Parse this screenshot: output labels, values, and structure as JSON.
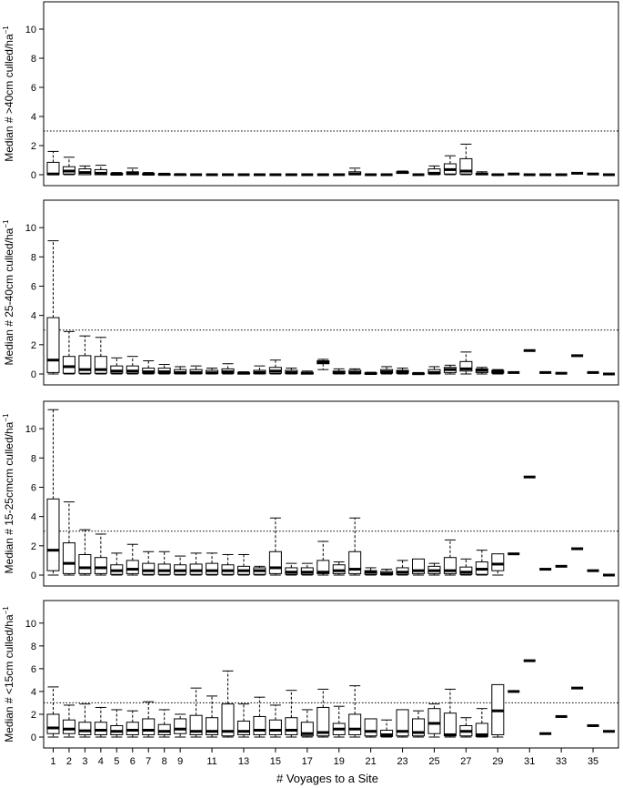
{
  "chart_data": {
    "type": "box",
    "xlabel": "# Voyages to a Site",
    "x_tick_labels": [
      "1",
      "2",
      "3",
      "4",
      "5",
      "6",
      "7",
      "8",
      "9",
      "11",
      "13",
      "15",
      "17",
      "19",
      "21",
      "23",
      "25",
      "27",
      "29",
      "31",
      "33",
      "35"
    ],
    "x_tick_positions": [
      1,
      2,
      3,
      4,
      5,
      6,
      7,
      8,
      9,
      11,
      13,
      15,
      17,
      19,
      21,
      23,
      25,
      27,
      29,
      31,
      33,
      35
    ],
    "xlim": [
      0.4,
      36.6
    ],
    "reference_line": 3,
    "panels": [
      {
        "ylabel_main": "Median # >40cm culled/ha",
        "ylabel_sup": "−1",
        "ylim": [
          0,
          11.5
        ],
        "yticks": [
          "0",
          "2",
          "4",
          "6",
          "8",
          "10"
        ],
        "boxes": [
          [
            1,
            0,
            0,
            0.05,
            0.85,
            1.6
          ],
          [
            2,
            0,
            0.05,
            0.25,
            0.55,
            1.2
          ],
          [
            3,
            0,
            0,
            0.15,
            0.4,
            0.6
          ],
          [
            4,
            0,
            0,
            0.1,
            0.35,
            0.65
          ],
          [
            5,
            0,
            0,
            0.03,
            0.1,
            0.15
          ],
          [
            6,
            0,
            0,
            0.1,
            0.2,
            0.45
          ],
          [
            7,
            0,
            0,
            0.03,
            0.08,
            0.15
          ],
          [
            8,
            0,
            0,
            0.02,
            0.05,
            0.1
          ],
          [
            9,
            0,
            0,
            0.01,
            0.02,
            0.05
          ],
          [
            10,
            0,
            0,
            0,
            0,
            0
          ],
          [
            11,
            0,
            0,
            0,
            0,
            0
          ],
          [
            12,
            0,
            0,
            0,
            0,
            0
          ],
          [
            13,
            0,
            0,
            0,
            0,
            0
          ],
          [
            14,
            0,
            0,
            0,
            0,
            0
          ],
          [
            15,
            0,
            0,
            0,
            0,
            0
          ],
          [
            16,
            0,
            0,
            0,
            0,
            0
          ],
          [
            17,
            0,
            0,
            0,
            0,
            0
          ],
          [
            18,
            0,
            0,
            0,
            0,
            0
          ],
          [
            19,
            0,
            0,
            0,
            0,
            0
          ],
          [
            20,
            0,
            0,
            0.05,
            0.2,
            0.45
          ],
          [
            21,
            0,
            0,
            0,
            0,
            0
          ],
          [
            22,
            0,
            0,
            0,
            0,
            0
          ],
          [
            23,
            0.1,
            0.1,
            0.15,
            0.2,
            0.25
          ],
          [
            24,
            0,
            0,
            0,
            0,
            0
          ],
          [
            25,
            0,
            0.02,
            0.1,
            0.4,
            0.6
          ],
          [
            26,
            0,
            0.05,
            0.35,
            0.75,
            1.3
          ],
          [
            27,
            0,
            0.05,
            0.25,
            1.1,
            2.1
          ],
          [
            28,
            0,
            0,
            0.05,
            0.1,
            0.2
          ],
          [
            29,
            0,
            0,
            0,
            0.03,
            0.05
          ],
          [
            30,
            0.05,
            0.05,
            0.05,
            0.05,
            0.05
          ],
          [
            31,
            0,
            0,
            0,
            0,
            0
          ],
          [
            32,
            0,
            0,
            0,
            0,
            0
          ],
          [
            33,
            0,
            0,
            0,
            0,
            0
          ],
          [
            34,
            0.1,
            0.1,
            0.1,
            0.1,
            0.1
          ],
          [
            35,
            0.05,
            0.05,
            0.05,
            0.05,
            0.05
          ],
          [
            36,
            0,
            0,
            0,
            0,
            0
          ]
        ]
      },
      {
        "ylabel_main": "Median # 25-40cm culled/ha",
        "ylabel_sup": "−1",
        "ylim": [
          0,
          11.5
        ],
        "yticks": [
          "0",
          "2",
          "4",
          "6",
          "8",
          "10"
        ],
        "boxes": [
          [
            1,
            0,
            0.1,
            0.95,
            3.85,
            9.1
          ],
          [
            2,
            0,
            0.05,
            0.5,
            1.2,
            2.9
          ],
          [
            3,
            0,
            0.05,
            0.3,
            1.25,
            2.6
          ],
          [
            4,
            0,
            0.05,
            0.3,
            1.2,
            2.5
          ],
          [
            5,
            0,
            0.05,
            0.2,
            0.55,
            1.1
          ],
          [
            6,
            0,
            0.05,
            0.2,
            0.55,
            1.2
          ],
          [
            7,
            0,
            0.05,
            0.15,
            0.4,
            0.9
          ],
          [
            8,
            0,
            0.05,
            0.15,
            0.4,
            0.65
          ],
          [
            9,
            0,
            0.02,
            0.1,
            0.3,
            0.5
          ],
          [
            10,
            0,
            0.02,
            0.1,
            0.3,
            0.55
          ],
          [
            11,
            0,
            0.02,
            0.08,
            0.25,
            0.4
          ],
          [
            12,
            0,
            0.05,
            0.15,
            0.35,
            0.7
          ],
          [
            13,
            0,
            0,
            0.05,
            0.1,
            0.15
          ],
          [
            14,
            0,
            0.02,
            0.1,
            0.25,
            0.55
          ],
          [
            15,
            0,
            0.05,
            0.2,
            0.45,
            0.95
          ],
          [
            16,
            0,
            0.02,
            0.1,
            0.25,
            0.4
          ],
          [
            17,
            0,
            0,
            0.05,
            0.12,
            0.2
          ],
          [
            18,
            0.3,
            0.7,
            0.8,
            0.9,
            1.0
          ],
          [
            19,
            0,
            0.02,
            0.1,
            0.2,
            0.35
          ],
          [
            20,
            0,
            0.02,
            0.1,
            0.25,
            0.35
          ],
          [
            21,
            0,
            0,
            0.03,
            0.08,
            0.12
          ],
          [
            22,
            0,
            0.05,
            0.15,
            0.3,
            0.5
          ],
          [
            23,
            0,
            0.05,
            0.15,
            0.25,
            0.4
          ],
          [
            24,
            0,
            0,
            0.02,
            0.05,
            0.1
          ],
          [
            25,
            0,
            0.02,
            0.1,
            0.3,
            0.5
          ],
          [
            26,
            0,
            0.1,
            0.3,
            0.45,
            0.6
          ],
          [
            27,
            0,
            0.2,
            0.35,
            0.85,
            1.5
          ],
          [
            28,
            0,
            0.1,
            0.25,
            0.35,
            0.45
          ],
          [
            29,
            0,
            0.05,
            0.15,
            0.25,
            0.3
          ],
          [
            30,
            0.1,
            0.1,
            0.1,
            0.1,
            0.1
          ],
          [
            31,
            1.6,
            1.6,
            1.6,
            1.6,
            1.6
          ],
          [
            32,
            0.1,
            0.1,
            0.1,
            0.1,
            0.1
          ],
          [
            33,
            0.05,
            0.05,
            0.05,
            0.05,
            0.05
          ],
          [
            34,
            1.25,
            1.25,
            1.25,
            1.25,
            1.25
          ],
          [
            35,
            0.1,
            0.1,
            0.1,
            0.1,
            0.1
          ],
          [
            36,
            0,
            0,
            0,
            0,
            0
          ]
        ]
      },
      {
        "ylabel_main": "Median # 15-25cmcm culled/ha",
        "ylabel_sup": "−1",
        "ylim": [
          0,
          11.5
        ],
        "yticks": [
          "0",
          "2",
          "4",
          "6",
          "8",
          "10"
        ],
        "boxes": [
          [
            1,
            0,
            0.3,
            1.7,
            5.2,
            11.3
          ],
          [
            2,
            0,
            0.1,
            0.8,
            2.2,
            5.0
          ],
          [
            3,
            0,
            0.1,
            0.5,
            1.4,
            3.1
          ],
          [
            4,
            0,
            0.1,
            0.5,
            1.2,
            2.8
          ],
          [
            5,
            0,
            0.05,
            0.3,
            0.7,
            1.5
          ],
          [
            6,
            0,
            0.1,
            0.4,
            1.0,
            2.1
          ],
          [
            7,
            0,
            0.05,
            0.3,
            0.8,
            1.6
          ],
          [
            8,
            0,
            0.05,
            0.3,
            0.75,
            1.6
          ],
          [
            9,
            0,
            0.05,
            0.3,
            0.7,
            1.3
          ],
          [
            10,
            0,
            0.05,
            0.3,
            0.75,
            1.5
          ],
          [
            11,
            0,
            0.05,
            0.3,
            0.8,
            1.5
          ],
          [
            12,
            0,
            0.05,
            0.3,
            0.7,
            1.4
          ],
          [
            13,
            0,
            0.05,
            0.3,
            0.6,
            1.4
          ],
          [
            14,
            0,
            0.05,
            0.3,
            0.5,
            0.6
          ],
          [
            15,
            0,
            0.1,
            0.5,
            1.6,
            3.9
          ],
          [
            16,
            0,
            0.05,
            0.2,
            0.5,
            0.8
          ],
          [
            17,
            0,
            0.05,
            0.2,
            0.5,
            0.8
          ],
          [
            18,
            0,
            0.1,
            0.2,
            1.0,
            2.3
          ],
          [
            19,
            0,
            0.1,
            0.3,
            0.7,
            0.9
          ],
          [
            20,
            0,
            0.1,
            0.4,
            1.6,
            3.9
          ],
          [
            21,
            0,
            0.05,
            0.2,
            0.3,
            0.5
          ],
          [
            22,
            0,
            0.02,
            0.1,
            0.25,
            0.4
          ],
          [
            23,
            0,
            0.05,
            0.2,
            0.5,
            1.0
          ],
          [
            24,
            0,
            0.1,
            0.3,
            1.1,
            1.1
          ],
          [
            25,
            0,
            0.1,
            0.3,
            0.6,
            0.8
          ],
          [
            26,
            0,
            0.1,
            0.3,
            1.2,
            2.4
          ],
          [
            27,
            0,
            0.05,
            0.2,
            0.55,
            1.1
          ],
          [
            28,
            0,
            0.05,
            0.4,
            0.9,
            1.7
          ],
          [
            29,
            0,
            0.3,
            0.75,
            1.45,
            1.45
          ],
          [
            30,
            1.45,
            1.45,
            1.45,
            1.45,
            1.45
          ],
          [
            31,
            6.7,
            6.7,
            6.7,
            6.7,
            6.7
          ],
          [
            32,
            0.4,
            0.4,
            0.4,
            0.4,
            0.4
          ],
          [
            33,
            0.6,
            0.6,
            0.6,
            0.6,
            0.6
          ],
          [
            34,
            1.8,
            1.8,
            1.8,
            1.8,
            1.8
          ],
          [
            35,
            0.3,
            0.3,
            0.3,
            0.3,
            0.3
          ],
          [
            36,
            0,
            0,
            0,
            0,
            0
          ]
        ]
      },
      {
        "ylabel_main": "Median # <15cm culled/ha",
        "ylabel_sup": "−1",
        "ylim": [
          0,
          11.5
        ],
        "yticks": [
          "0",
          "2",
          "4",
          "6",
          "8",
          "10"
        ],
        "boxes": [
          [
            1,
            0,
            0.3,
            0.8,
            2.0,
            4.4
          ],
          [
            2,
            0,
            0.3,
            0.7,
            1.5,
            2.8
          ],
          [
            3,
            0,
            0.2,
            0.55,
            1.3,
            2.9
          ],
          [
            4,
            0,
            0.2,
            0.6,
            1.3,
            2.6
          ],
          [
            5,
            0,
            0.2,
            0.5,
            1.0,
            2.4
          ],
          [
            6,
            0,
            0.2,
            0.6,
            1.3,
            2.3
          ],
          [
            7,
            0,
            0.2,
            0.6,
            1.6,
            3.1
          ],
          [
            8,
            0,
            0.2,
            0.5,
            1.1,
            2.4
          ],
          [
            9,
            0,
            0.3,
            0.7,
            1.6,
            2.0
          ],
          [
            10,
            0,
            0.2,
            0.5,
            1.9,
            4.3
          ],
          [
            11,
            0,
            0.2,
            0.5,
            1.7,
            3.6
          ],
          [
            12,
            0,
            0.1,
            0.5,
            2.9,
            5.8
          ],
          [
            13,
            0,
            0.2,
            0.5,
            1.4,
            2.9
          ],
          [
            14,
            0,
            0.2,
            0.6,
            1.8,
            3.5
          ],
          [
            15,
            0,
            0.2,
            0.6,
            1.5,
            2.8
          ],
          [
            16,
            0,
            0.2,
            0.6,
            1.7,
            4.1
          ],
          [
            17,
            0,
            0.1,
            0.3,
            1.3,
            2.4
          ],
          [
            18,
            0,
            0.1,
            0.4,
            2.6,
            4.2
          ],
          [
            19,
            0,
            0.2,
            0.7,
            1.2,
            2.7
          ],
          [
            20,
            0,
            0.2,
            0.7,
            2.0,
            4.5
          ],
          [
            21,
            0,
            0.1,
            0.5,
            1.6,
            1.6
          ],
          [
            22,
            0,
            0.05,
            0.2,
            0.6,
            1.5
          ],
          [
            23,
            0,
            0.1,
            0.5,
            2.4,
            2.4
          ],
          [
            24,
            0,
            0.1,
            0.4,
            1.6,
            2.3
          ],
          [
            25,
            0,
            0.3,
            1.2,
            2.5,
            2.9
          ],
          [
            26,
            0,
            0.1,
            0.2,
            2.1,
            4.2
          ],
          [
            27,
            0,
            0.1,
            0.5,
            1.0,
            1.7
          ],
          [
            28,
            0,
            0.05,
            0.2,
            1.2,
            2.5
          ],
          [
            29,
            0,
            0.2,
            2.3,
            4.6,
            4.6
          ],
          [
            30,
            4.0,
            4.0,
            4.0,
            4.0,
            4.0
          ],
          [
            31,
            6.7,
            6.7,
            6.7,
            6.7,
            6.7
          ],
          [
            32,
            0.3,
            0.3,
            0.3,
            0.3,
            0.3
          ],
          [
            33,
            1.8,
            1.8,
            1.8,
            1.8,
            1.8
          ],
          [
            34,
            4.3,
            4.3,
            4.3,
            4.3,
            4.3
          ],
          [
            35,
            1.0,
            1.0,
            1.0,
            1.0,
            1.0
          ],
          [
            36,
            0.5,
            0.5,
            0.5,
            0.5,
            0.5
          ]
        ]
      }
    ]
  }
}
